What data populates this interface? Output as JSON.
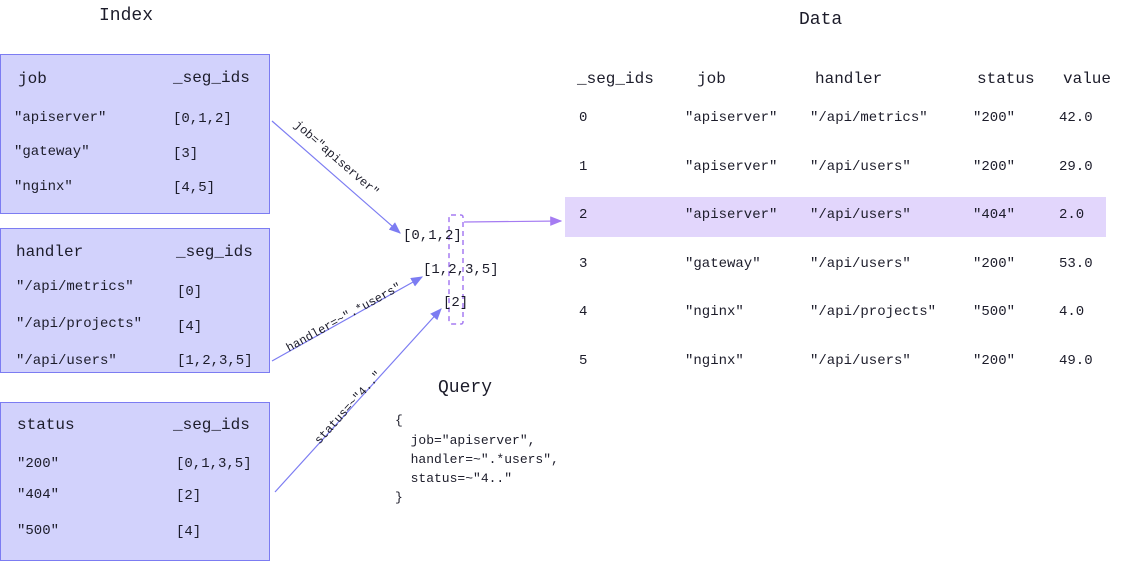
{
  "titles": {
    "index": "Index",
    "data": "Data",
    "query": "Query"
  },
  "index": {
    "job": {
      "key": "job",
      "col": "_seg_ids",
      "rows": [
        [
          "\"apiserver\"",
          "[0,1,2]"
        ],
        [
          "\"gateway\"",
          "[3]"
        ],
        [
          "\"nginx\"",
          "[4,5]"
        ]
      ]
    },
    "handler": {
      "key": "handler",
      "col": "_seg_ids",
      "rows": [
        [
          "\"/api/metrics\"",
          "[0]"
        ],
        [
          "\"/api/projects\"",
          "[4]"
        ],
        [
          "\"/api/users\"",
          "[1,2,3,5]"
        ]
      ]
    },
    "status": {
      "key": "status",
      "col": "_seg_ids",
      "rows": [
        [
          "\"200\"",
          "[0,1,3,5]"
        ],
        [
          "\"404\"",
          "[2]"
        ],
        [
          "\"500\"",
          "[4]"
        ]
      ]
    }
  },
  "edges": {
    "job": "job=\"apiserver\"",
    "handler": "handler=~\".*users\"",
    "status": "status=~\"4..\""
  },
  "intersect": [
    "[0,1,2]",
    "[1,2,3,5]",
    "[2]"
  ],
  "query": [
    "{",
    "  job=\"apiserver\",",
    "  handler=~\".*users\",",
    "  status=~\"4..\"",
    "}"
  ],
  "table": {
    "headers": [
      "_seg_ids",
      "job",
      "handler",
      "status",
      "value"
    ],
    "rows": [
      [
        "0",
        "\"apiserver\"",
        "\"/api/metrics\"",
        "\"200\"",
        "42.0"
      ],
      [
        "1",
        "\"apiserver\"",
        "\"/api/users\"",
        "\"200\"",
        "29.0"
      ],
      [
        "2",
        "\"apiserver\"",
        "\"/api/users\"",
        "\"404\"",
        "2.0"
      ],
      [
        "3",
        "\"gateway\"",
        "\"/api/users\"",
        "\"200\"",
        "53.0"
      ],
      [
        "4",
        "\"nginx\"",
        "\"/api/projects\"",
        "\"500\"",
        "4.0"
      ],
      [
        "5",
        "\"nginx\"",
        "\"/api/users\"",
        "\"200\"",
        "49.0"
      ]
    ],
    "highlighted_row": 2
  },
  "colors": {
    "box_fill": "#d2d2fc",
    "box_border": "#7c7cf2",
    "highlight": "#e2d6fc",
    "arrow": "#7c7cf2",
    "dashed": "#a57cf2"
  }
}
